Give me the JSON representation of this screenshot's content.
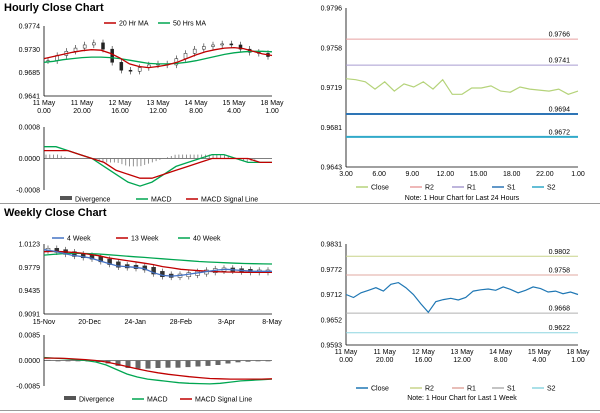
{
  "sections": {
    "hourly_title": "Hourly Close Chart",
    "weekly_title": "Weekly Close Chart"
  },
  "colors": {
    "ma_short": "#c00000",
    "ma_long": "#00a651",
    "close_hourly": "#b5d37a",
    "close_weekly": "#1f77b4",
    "r2": "#e8a0a0",
    "r1": "#a99cd0",
    "s1": "#2e75b6",
    "s2": "#31a9c9",
    "r2_weekly": "#c8d48a",
    "r1_weekly": "#e0a9a0",
    "s1_weekly": "#b0b0b0",
    "s2_weekly": "#8dd5e0",
    "wk4": "#4472c4",
    "wk13": "#c00000",
    "wk40": "#00a651"
  },
  "chart_data": [
    {
      "id": "hourly_price",
      "type": "line",
      "legend": [
        "20 Hr MA",
        "50 Hrs MA"
      ],
      "y_ticks": [
        "0.9774",
        "0.9730",
        "0.9685",
        "0.9641"
      ],
      "ylim": [
        0.9641,
        0.9774
      ],
      "x_ticks": [
        "11 May\n0.00",
        "11 May\n20.00",
        "12 May\n16.00",
        "13 May\n12.00",
        "14 May\n8.00",
        "15 May\n4.00",
        "18 May\n1.00"
      ],
      "series": [
        {
          "name": "20 Hr MA",
          "values": [
            0.9712,
            0.9716,
            0.972,
            0.9724,
            0.9727,
            0.9729,
            0.9728,
            0.9722,
            0.9713,
            0.9702,
            0.9697,
            0.9695,
            0.9697,
            0.97,
            0.9705,
            0.9712,
            0.9719,
            0.9725,
            0.9729,
            0.9732,
            0.9733,
            0.9731,
            0.9726,
            0.9721,
            0.9718
          ]
        },
        {
          "name": "50 Hrs MA",
          "values": [
            0.9705,
            0.9707,
            0.971,
            0.9712,
            0.9714,
            0.9715,
            0.9715,
            0.9714,
            0.9712,
            0.9709,
            0.9706,
            0.9703,
            0.9702,
            0.9702,
            0.9703,
            0.9705,
            0.9708,
            0.9712,
            0.9716,
            0.972,
            0.9723,
            0.9725,
            0.9726,
            0.9726,
            0.9725
          ]
        },
        {
          "name": "close",
          "values": [
            0.9708,
            0.9718,
            0.9726,
            0.9732,
            0.9738,
            0.9742,
            0.973,
            0.9705,
            0.969,
            0.9688,
            0.9695,
            0.97,
            0.9702,
            0.97,
            0.9712,
            0.9722,
            0.973,
            0.9735,
            0.9738,
            0.974,
            0.9738,
            0.973,
            0.9724,
            0.9722,
            0.9716
          ]
        }
      ]
    },
    {
      "id": "hourly_macd",
      "type": "line",
      "legend": [
        "Divergence",
        "MACD",
        "MACD Signal Line"
      ],
      "y_ticks": [
        "0.0008",
        "0.0000",
        "-0.0008"
      ],
      "ylim": [
        -0.0008,
        0.0008
      ],
      "series": [
        {
          "name": "MACD",
          "values": [
            0.0003,
            0.0003,
            0.0002,
            0.0001,
            0.0,
            -0.0002,
            -0.0004,
            -0.0006,
            -0.0007,
            -0.0006,
            -0.0004,
            -0.0002,
            -0.0001,
            0.0,
            0.0001,
            0.0001,
            0.0,
            -0.0001,
            -0.0001,
            -0.0001
          ]
        },
        {
          "name": "MACD Signal Line",
          "values": [
            0.0002,
            0.0002,
            0.0002,
            0.0001,
            0.0,
            -0.0001,
            -0.0003,
            -0.0004,
            -0.0005,
            -0.0005,
            -0.0004,
            -0.0003,
            -0.0002,
            -0.0001,
            0.0,
            0.0,
            0.0,
            0.0,
            -0.0001,
            -0.0001
          ]
        },
        {
          "name": "Divergence",
          "values": [
            0.0001,
            0.0001,
            0.0,
            0.0,
            0.0,
            -0.0001,
            -0.0001,
            -0.0002,
            -0.0002,
            -0.0001,
            0.0,
            0.0001,
            0.0001,
            0.0001,
            0.0001,
            0.0001,
            0.0,
            -0.0001,
            0.0,
            0.0
          ]
        }
      ]
    },
    {
      "id": "hourly_levels",
      "type": "line",
      "legend": [
        "Close",
        "R2",
        "R1",
        "S1",
        "S2"
      ],
      "note": "Note: 1 Hour Chart for Last 24 Hours",
      "y_ticks": [
        "0.9796",
        "0.9758",
        "0.9719",
        "0.9681",
        "0.9643"
      ],
      "ylim": [
        0.9643,
        0.9796
      ],
      "x_ticks": [
        "3.00",
        "6.00",
        "9.00",
        "12.00",
        "15.00",
        "18.00",
        "22.00",
        "1.00"
      ],
      "levels": {
        "R2": 0.9766,
        "R1": 0.9741,
        "S1": 0.9694,
        "S2": 0.9672
      },
      "level_labels": {
        "R2": "0.9766",
        "R1": "0.9741",
        "S1": "0.9694",
        "S2": "0.9672"
      },
      "close": [
        0.9728,
        0.9727,
        0.9725,
        0.9718,
        0.9725,
        0.9716,
        0.9723,
        0.972,
        0.9725,
        0.9718,
        0.9727,
        0.9713,
        0.9713,
        0.9719,
        0.9719,
        0.9721,
        0.9716,
        0.9715,
        0.972,
        0.9718,
        0.9717,
        0.9716,
        0.9718,
        0.9713,
        0.9716
      ]
    },
    {
      "id": "weekly_price",
      "type": "line",
      "legend": [
        "4 Week",
        "13 Week",
        "40 Week"
      ],
      "y_ticks": [
        "1.0123",
        "0.9779",
        "0.9435",
        "0.9091"
      ],
      "ylim": [
        0.9091,
        1.0123
      ],
      "x_ticks": [
        "15-Nov",
        "20-Dec",
        "24-Jan",
        "28-Feb",
        "3-Apr",
        "8-May"
      ],
      "series": [
        {
          "name": "4 Week",
          "values": [
            1.004,
            1.002,
            0.999,
            0.996,
            0.994,
            0.992,
            0.988,
            0.984,
            0.98,
            0.979,
            0.978,
            0.976,
            0.97,
            0.966,
            0.965,
            0.966,
            0.968,
            0.97,
            0.972,
            0.974,
            0.975,
            0.974,
            0.973,
            0.972,
            0.972,
            0.972
          ]
        },
        {
          "name": "13 Week",
          "values": [
            1.001,
            1.0015,
            1.001,
            1.0,
            0.999,
            0.997,
            0.995,
            0.992,
            0.99,
            0.988,
            0.986,
            0.984,
            0.982,
            0.979,
            0.977,
            0.975,
            0.974,
            0.973,
            0.972,
            0.9715,
            0.971,
            0.9708,
            0.9706,
            0.9705,
            0.9705,
            0.9706
          ]
        },
        {
          "name": "40 Week",
          "values": [
            0.996,
            0.997,
            0.998,
            0.9985,
            0.9985,
            0.9982,
            0.9975,
            0.9965,
            0.9955,
            0.9945,
            0.9935,
            0.9925,
            0.9915,
            0.9905,
            0.9895,
            0.9885,
            0.9875,
            0.9865,
            0.9858,
            0.9852,
            0.9846,
            0.984,
            0.9836,
            0.9832,
            0.983,
            0.9828
          ]
        }
      ]
    },
    {
      "id": "weekly_macd",
      "type": "line",
      "legend": [
        "Divergence",
        "MACD",
        "MACD Signal Line"
      ],
      "y_ticks": [
        "0.0085",
        "0.0000",
        "-0.0085"
      ],
      "ylim": [
        -0.0085,
        0.0085
      ],
      "series": [
        {
          "name": "MACD",
          "values": [
            0.001,
            0.0008,
            0.0006,
            0.0003,
            0.0,
            -0.0005,
            -0.0015,
            -0.003,
            -0.0045,
            -0.0055,
            -0.0062,
            -0.0066,
            -0.007,
            -0.0074,
            -0.0076,
            -0.0077,
            -0.0078,
            -0.0076,
            -0.0072,
            -0.0068,
            -0.0066,
            -0.0064,
            -0.0062
          ]
        },
        {
          "name": "MACD Signal Line",
          "values": [
            0.0008,
            0.0008,
            0.0007,
            0.0005,
            0.0003,
            0.0,
            -0.0005,
            -0.0012,
            -0.002,
            -0.0028,
            -0.0035,
            -0.0041,
            -0.0046,
            -0.005,
            -0.0054,
            -0.0057,
            -0.006,
            -0.0061,
            -0.0062,
            -0.0062,
            -0.0062,
            -0.0062,
            -0.0061
          ]
        },
        {
          "name": "Divergence",
          "values": [
            0.0002,
            0.0,
            -0.0001,
            -0.0002,
            -0.0003,
            -0.0005,
            -0.001,
            -0.0018,
            -0.0025,
            -0.0027,
            -0.0027,
            -0.0025,
            -0.0024,
            -0.0024,
            -0.0022,
            -0.002,
            -0.0018,
            -0.0015,
            -0.001,
            -0.0006,
            -0.0004,
            -0.0002,
            -0.0001
          ]
        }
      ]
    },
    {
      "id": "weekly_levels",
      "type": "line",
      "legend": [
        "Close",
        "R2",
        "R1",
        "S1",
        "S2"
      ],
      "note": "Note: 1 Hour Chart for Last 1 Week",
      "y_ticks": [
        "0.9831",
        "0.9772",
        "0.9712",
        "0.9652",
        "0.9593"
      ],
      "ylim": [
        0.9593,
        0.9831
      ],
      "x_ticks": [
        "11 May\n0.00",
        "11 May\n20.00",
        "12 May\n16.00",
        "13 May\n12.00",
        "14 May\n8.00",
        "15 May\n4.00",
        "18 May\n1.00"
      ],
      "levels": {
        "R2": 0.9802,
        "R1": 0.9758,
        "S1": 0.9668,
        "S2": 0.9622
      },
      "level_labels": {
        "R2": "0.9802",
        "R1": "0.9758",
        "S1": "0.9668",
        "S2": "0.9622"
      },
      "close": [
        0.9712,
        0.9705,
        0.9716,
        0.9722,
        0.9728,
        0.972,
        0.9736,
        0.974,
        0.9728,
        0.9712,
        0.969,
        0.967,
        0.9695,
        0.97,
        0.9703,
        0.9699,
        0.9705,
        0.972,
        0.9723,
        0.9725,
        0.9722,
        0.973,
        0.9724,
        0.9716,
        0.9722,
        0.973,
        0.9726,
        0.9718,
        0.972,
        0.9714,
        0.9718,
        0.9712
      ]
    }
  ]
}
